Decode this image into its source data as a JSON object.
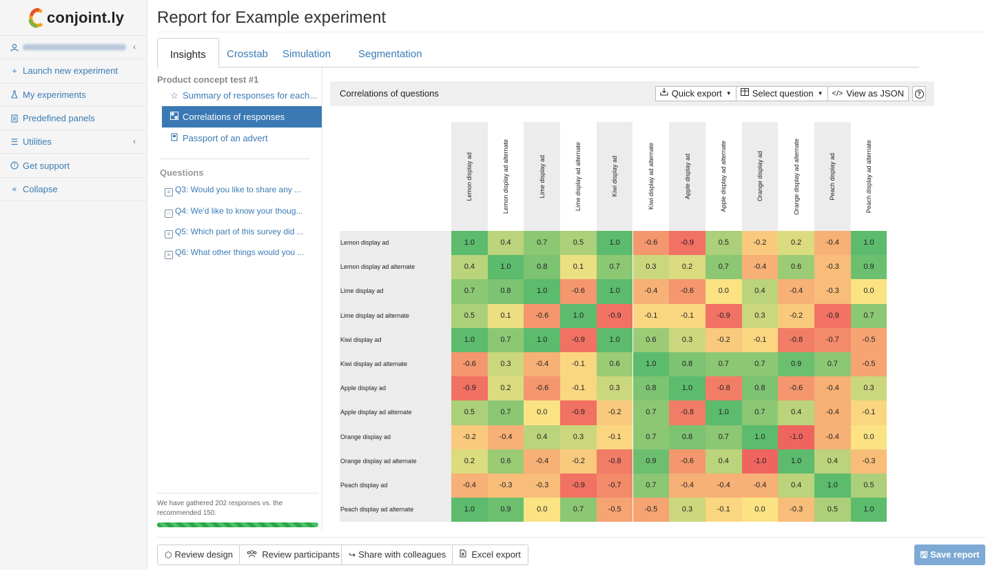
{
  "app": {
    "logo_text": "conjoint.ly",
    "page_title": "Report for Example experiment"
  },
  "sidebar": {
    "items": [
      {
        "label": "",
        "icon": "user-icon"
      },
      {
        "label": "Launch new experiment",
        "icon": "plus-icon"
      },
      {
        "label": "My experiments",
        "icon": "flask-icon"
      },
      {
        "label": "Predefined panels",
        "icon": "panel-icon"
      },
      {
        "label": "Utilities",
        "icon": "menu-icon"
      },
      {
        "label": "Get support",
        "icon": "help-icon"
      },
      {
        "label": "Collapse",
        "icon": "double-chevron-left-icon"
      }
    ]
  },
  "tabs": [
    "Insights",
    "Crosstab",
    "Simulation",
    "Segmentation"
  ],
  "subnav": {
    "group_title": "Product concept test #1",
    "items": [
      {
        "label": "Summary of responses for each...",
        "icon": "star-icon"
      },
      {
        "label": "Correlations of responses",
        "icon": "grid-icon"
      },
      {
        "label": "Passport of an advert",
        "icon": "document-icon"
      }
    ],
    "questions_title": "Questions",
    "questions": [
      "Q3: Would you like to share any ...",
      "Q4: We'd like to know your thoug...",
      "Q5: Which part of this survey did ...",
      "Q6: What other things would you ..."
    ],
    "responses_note": "We have gathered 202 responses vs. the recommended 150.",
    "progress_percent": 100
  },
  "card": {
    "title": "Correlations of questions",
    "quick_export": "Quick export",
    "select_question": "Select question",
    "view_json": "View as JSON",
    "help": "?"
  },
  "matrix": {
    "labels": [
      "Lemon display ad",
      "Lemon display ad alternate",
      "Lime display ad",
      "Lime display ad alternate",
      "Kiwi display ad",
      "Kiwi display ad alternate",
      "Apple display ad",
      "Apple display ad alternate",
      "Orange display ad",
      "Orange display ad alternate",
      "Peach display ad",
      "Peach display ad alternate"
    ],
    "values": [
      [
        "1.0",
        "0.4",
        "0.7",
        "0.5",
        "1.0",
        "-0.6",
        "-0.9",
        "0.5",
        "-0.2",
        "0.2",
        "-0.4",
        "1.0"
      ],
      [
        "0.4",
        "1.0",
        "0.8",
        "0.1",
        "0.7",
        "0.3",
        "0.2",
        "0.7",
        "-0.4",
        "0.6",
        "-0.3",
        "0.9"
      ],
      [
        "0.7",
        "0.8",
        "1.0",
        "-0.6",
        "1.0",
        "-0.4",
        "-0.6",
        "0.0",
        "0.4",
        "-0.4",
        "-0.3",
        "0.0"
      ],
      [
        "0.5",
        "0.1",
        "-0.6",
        "1.0",
        "-0.9",
        "-0.1",
        "-0.1",
        "-0.9",
        "0.3",
        "-0.2",
        "-0.9",
        "0.7"
      ],
      [
        "1.0",
        "0.7",
        "1.0",
        "-0.9",
        "1.0",
        "0.6",
        "0.3",
        "-0.2",
        "-0.1",
        "-0.8",
        "-0.7",
        "-0.5"
      ],
      [
        "-0.6",
        "0.3",
        "-0.4",
        "-0.1",
        "0.6",
        "1.0",
        "0.8",
        "0.7",
        "0.7",
        "0.9",
        "0.7",
        "-0.5"
      ],
      [
        "-0.9",
        "0.2",
        "-0.6",
        "-0.1",
        "0.3",
        "0.8",
        "1.0",
        "-0.8",
        "0.8",
        "-0.6",
        "-0.4",
        "0.3"
      ],
      [
        "0.5",
        "0.7",
        "0.0",
        "-0.9",
        "-0.2",
        "0.7",
        "-0.8",
        "1.0",
        "0.7",
        "0.4",
        "-0.4",
        "-0.1"
      ],
      [
        "-0.2",
        "-0.4",
        "0.4",
        "0.3",
        "-0.1",
        "0.7",
        "0.8",
        "0.7",
        "1.0",
        "-1.0",
        "-0.4",
        "0.0"
      ],
      [
        "0.2",
        "0.6",
        "-0.4",
        "-0.2",
        "-0.8",
        "0.9",
        "-0.6",
        "0.4",
        "-1.0",
        "1.0",
        "0.4",
        "-0.3"
      ],
      [
        "-0.4",
        "-0.3",
        "-0.3",
        "-0.9",
        "-0.7",
        "0.7",
        "-0.4",
        "-0.4",
        "-0.4",
        "0.4",
        "1.0",
        "0.5"
      ],
      [
        "1.0",
        "0.9",
        "0.0",
        "0.7",
        "-0.5",
        "-0.5",
        "0.3",
        "-0.1",
        "0.0",
        "-0.3",
        "0.5",
        "1.0"
      ]
    ],
    "colors": {
      "negative": "#f0645f",
      "neutral": "#fbe384",
      "positive": "#5cbb6d"
    }
  },
  "footer": {
    "review_design": "Review design",
    "review_participants": "Review participants",
    "share": "Share with colleagues",
    "excel_export": "Excel export",
    "save_report": "Save report"
  }
}
